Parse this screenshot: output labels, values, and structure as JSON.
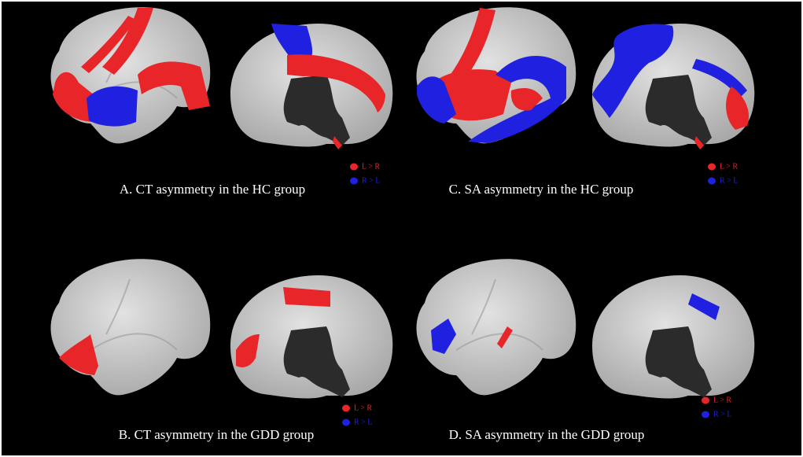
{
  "panels": [
    {
      "caption": "A. CT asymmetry in the HC group",
      "legend": [
        {
          "label": "L > R",
          "color": "#e8262a"
        },
        {
          "label": "R > L",
          "color": "#2020e0"
        }
      ]
    },
    {
      "caption": "C. SA asymmetry in the HC group",
      "legend": [
        {
          "label": "L > R",
          "color": "#e8262a"
        },
        {
          "label": "R > L",
          "color": "#2020e0"
        }
      ]
    },
    {
      "caption": "B. CT asymmetry in the GDD group",
      "legend": [
        {
          "label": "L > R",
          "color": "#e8262a"
        },
        {
          "label": "R > L",
          "color": "#2020e0"
        }
      ]
    },
    {
      "caption": "D. SA asymmetry in the GDD group",
      "legend": [
        {
          "label": "L > R",
          "color": "#e8262a"
        },
        {
          "label": "R > L",
          "color": "#2020e0"
        }
      ]
    }
  ]
}
